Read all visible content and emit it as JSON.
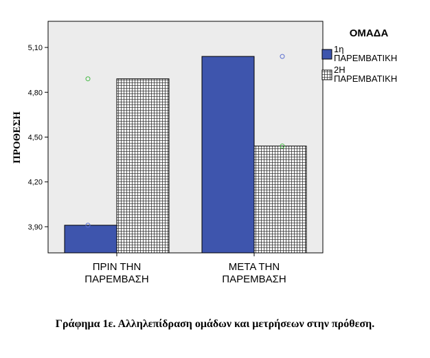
{
  "chart_data": {
    "type": "bar",
    "categories": [
      [
        "ΠΡΙΝ ΤΗΝ",
        "ΠΑΡΕΜΒΑΣΗ"
      ],
      [
        "ΜΕΤΑ ΤΗΝ",
        "ΠΑΡΕΜΒΑΣΗ"
      ]
    ],
    "series": [
      {
        "name": [
          "1η",
          "ΠΑΡΕΜΒΑΤΙΚΗ"
        ],
        "values": [
          3.91,
          5.04
        ],
        "color": "#3e55ad",
        "pattern": "solid",
        "marker_values": [
          3.91,
          5.04
        ],
        "marker_color": "#5b6fcf"
      },
      {
        "name": [
          "2Η",
          "ΠΑΡΕΜΒΑΤΙΚΗ"
        ],
        "values": [
          4.89,
          4.44
        ],
        "color": "#ffffff",
        "pattern": "grid",
        "marker_values": [
          4.89,
          4.44
        ],
        "marker_color": "#43b943"
      }
    ],
    "ylabel": "ΠΡΟΘΕΣΗ",
    "xlabel": "",
    "yticks": [
      3.9,
      4.2,
      4.5,
      4.8,
      5.1
    ],
    "ylim": [
      3.725,
      5.275
    ],
    "legend_title": "ΟΜΑΔΑ",
    "legend_position": "right",
    "plot_background": "#ececec",
    "grid": false
  },
  "caption": "Γράφημα 1ε. Αλληλεπίδραση ομάδων και μετρήσεων στην πρόθεση."
}
